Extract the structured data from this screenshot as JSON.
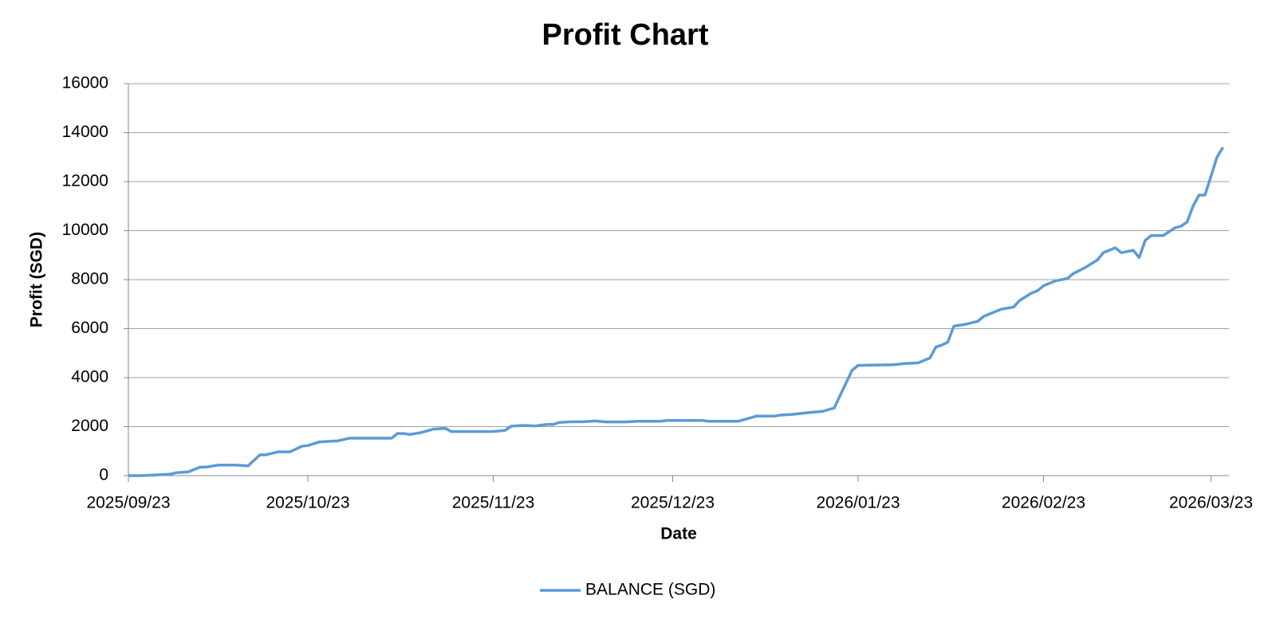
{
  "chart_data": {
    "type": "line",
    "title": "Profit Chart",
    "x_label": "Date",
    "y_label": "Profit (SGD)",
    "x": [
      "2025/09/23",
      "2025/09/25",
      "2025/09/27",
      "2025/09/30",
      "2025/10/01",
      "2025/10/03",
      "2025/10/05",
      "2025/10/06",
      "2025/10/08",
      "2025/10/11",
      "2025/10/13",
      "2025/10/15",
      "2025/10/16",
      "2025/10/18",
      "2025/10/20",
      "2025/10/22",
      "2025/10/23",
      "2025/10/25",
      "2025/10/28",
      "2025/10/30",
      "2025/11/06",
      "2025/11/07",
      "2025/11/08",
      "2025/11/09",
      "2025/11/11",
      "2025/11/13",
      "2025/11/15",
      "2025/11/16",
      "2025/11/23",
      "2025/11/25",
      "2025/11/26",
      "2025/11/28",
      "2025/11/30",
      "2025/12/02",
      "2025/12/03",
      "2025/12/04",
      "2025/12/06",
      "2025/12/08",
      "2025/12/10",
      "2025/12/12",
      "2025/12/15",
      "2025/12/17",
      "2025/12/21",
      "2025/12/22",
      "2025/12/28",
      "2025/12/29",
      "2026/01/03",
      "2026/01/06",
      "2026/01/09",
      "2026/01/10",
      "2026/01/12",
      "2026/01/15",
      "2026/01/17",
      "2026/01/19",
      "2026/01/22",
      "2026/01/23",
      "2026/01/29",
      "2026/01/31",
      "2026/02/02",
      "2026/02/04",
      "2026/02/05",
      "2026/02/06",
      "2026/02/07",
      "2026/02/08",
      "2026/02/10",
      "2026/02/12",
      "2026/02/13",
      "2026/02/14",
      "2026/02/16",
      "2026/02/18",
      "2026/02/19",
      "2026/02/21",
      "2026/02/22",
      "2026/02/23",
      "2026/02/25",
      "2026/02/27",
      "2026/02/28",
      "2026/03/02",
      "2026/03/04",
      "2026/03/05",
      "2026/03/07",
      "2026/03/08",
      "2026/03/10",
      "2026/03/11",
      "2026/03/12",
      "2026/03/13",
      "2026/03/15",
      "2026/03/17",
      "2026/03/18",
      "2026/03/19",
      "2026/03/20",
      "2026/03/21",
      "2026/03/22",
      "2026/03/24",
      "2026/03/25"
    ],
    "series": [
      {
        "name": "BALANCE (SGD)",
        "color": "#5b9bd5",
        "values": [
          0,
          0,
          20,
          60,
          120,
          150,
          350,
          350,
          430,
          430,
          400,
          850,
          850,
          970,
          970,
          1200,
          1230,
          1380,
          1420,
          1530,
          1530,
          1720,
          1720,
          1680,
          1760,
          1900,
          1930,
          1800,
          1800,
          1850,
          2020,
          2050,
          2030,
          2090,
          2090,
          2170,
          2200,
          2200,
          2230,
          2190,
          2190,
          2220,
          2220,
          2250,
          2250,
          2220,
          2220,
          2430,
          2430,
          2470,
          2500,
          2580,
          2620,
          2760,
          4300,
          4500,
          4530,
          4580,
          4600,
          4800,
          5250,
          5330,
          5450,
          6100,
          6180,
          6300,
          6500,
          6600,
          6800,
          6880,
          7150,
          7450,
          7550,
          7750,
          7950,
          8050,
          8250,
          8500,
          8800,
          9100,
          9300,
          9100,
          9200,
          8900,
          9600,
          9800,
          9800,
          10120,
          10180,
          10350,
          11000,
          11450,
          11450,
          13000,
          13400
        ]
      }
    ],
    "xlim": [
      "2025/09/23",
      "2026/03/26"
    ],
    "xticks": [
      "2025/09/23",
      "2025/10/23",
      "2025/11/23",
      "2025/12/23",
      "2026/01/23",
      "2026/02/23",
      "2026/03/23"
    ],
    "ylim": [
      0,
      16000
    ],
    "yticks": [
      0,
      2000,
      4000,
      6000,
      8000,
      10000,
      12000,
      14000,
      16000
    ],
    "grid": true,
    "legend": "bottom"
  }
}
